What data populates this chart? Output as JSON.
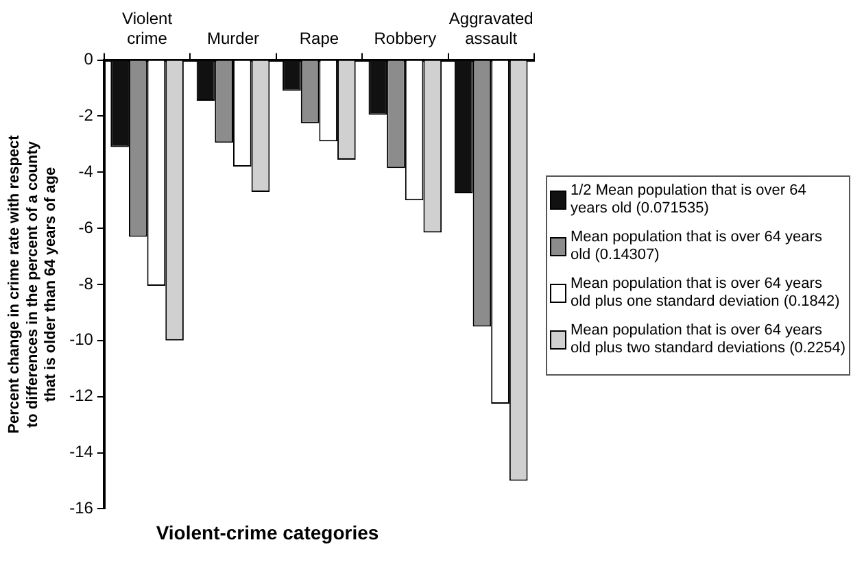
{
  "chart_data": {
    "type": "bar",
    "xlabel": "Violent-crime categories",
    "ylabel": "Percent change in crime rate with respect to differences in the percent of a county that is older than 64 years of age",
    "categories": [
      "Violent crime",
      "Murder",
      "Rape",
      "Robbery",
      "Aggravated assault"
    ],
    "series": [
      {
        "name": "1/2 Mean population that is over 64 years old (0.071535)",
        "color": "#111111",
        "values": [
          -3.1,
          -1.45,
          -1.1,
          -1.95,
          -4.75
        ]
      },
      {
        "name": "Mean population that is over 64 years old (0.14307)",
        "color": "#8c8c8c",
        "values": [
          -6.3,
          -2.95,
          -2.25,
          -3.85,
          -9.5
        ]
      },
      {
        "name": "Mean population that is over 64 years old plus one standard deviation (0.1842)",
        "color": "#ffffff",
        "values": [
          -8.05,
          -3.8,
          -2.9,
          -5.0,
          -12.25
        ]
      },
      {
        "name": "Mean population that is over 64 years old plus two standard deviations (0.2254)",
        "color": "#d0d0d0",
        "values": [
          -10,
          -4.7,
          -3.55,
          -6.15,
          -15
        ]
      }
    ],
    "ylim": [
      -16,
      0
    ],
    "yticks": [
      0,
      -2,
      -4,
      -6,
      -8,
      -10,
      -12,
      -14,
      -16
    ],
    "grid": false,
    "legend": "right"
  }
}
